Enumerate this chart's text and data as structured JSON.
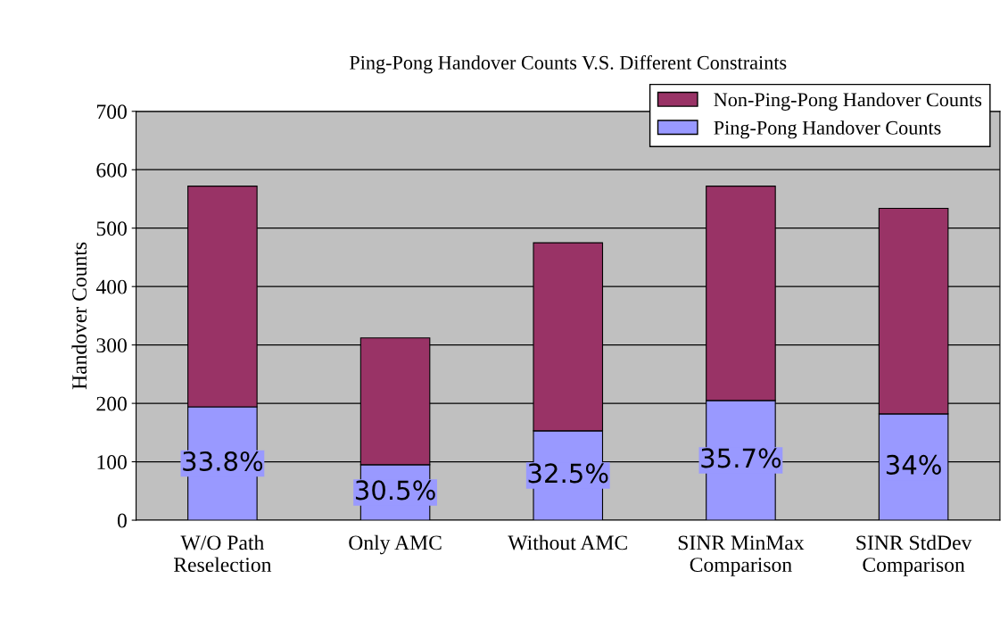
{
  "chart_data": {
    "type": "bar",
    "title": "Ping-Pong Handover Counts V.S. Different Constraints",
    "ylabel": "Handover Counts",
    "categories": [
      "W/O Path\nReselection",
      "Only AMC",
      "Without AMC",
      "SINR MinMax\nComparison",
      "SINR StdDev\nComparison"
    ],
    "stacked": true,
    "series": [
      {
        "name": "Ping-Pong Handover Counts",
        "color": "#9999ff",
        "values": [
          194,
          95,
          153,
          205,
          182
        ]
      },
      {
        "name": "Non-Ping-Pong Handover Counts",
        "color": "#993366",
        "values": [
          378,
          217,
          322,
          367,
          352
        ]
      }
    ],
    "annotations": [
      "33.8%",
      "30.5%",
      "32.5%",
      "35.7%",
      "34%"
    ],
    "ylim": [
      0,
      700
    ],
    "yticks": [
      0,
      100,
      200,
      300,
      400,
      500,
      600,
      700
    ],
    "grid": "y",
    "legend": "top right"
  }
}
